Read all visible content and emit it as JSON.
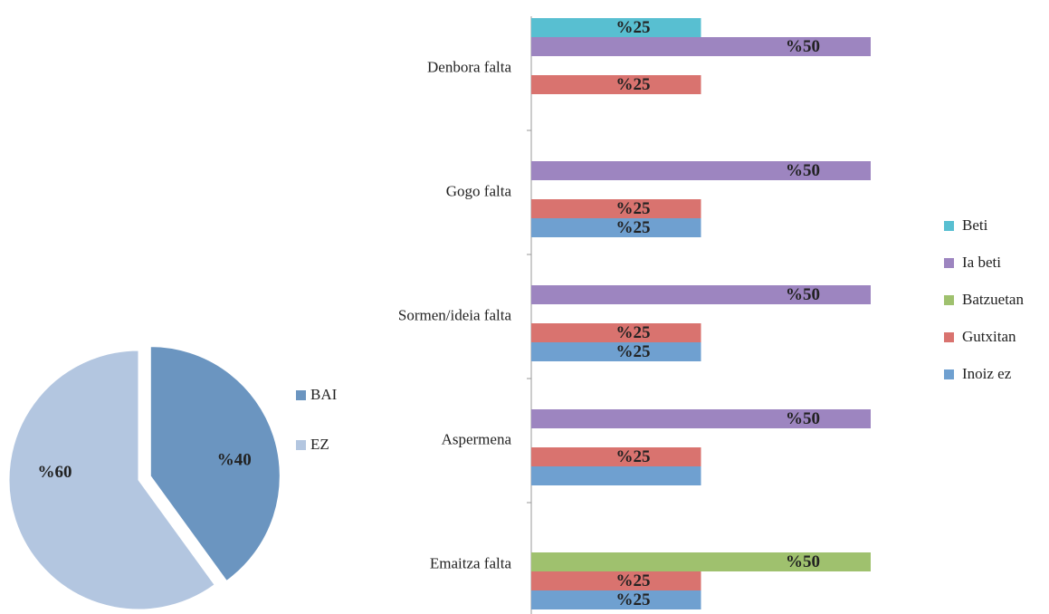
{
  "chart_data": [
    {
      "type": "pie",
      "categories": [
        "BAI",
        "EZ"
      ],
      "values": [
        40,
        60
      ],
      "value_labels": [
        "%40",
        "%60"
      ],
      "colors": [
        "#6b95c0",
        "#b3c6e0"
      ],
      "legend": "right"
    },
    {
      "type": "bar",
      "orientation": "horizontal",
      "categories": [
        "Denbora falta",
        "Gogo falta",
        "Sormen/ideia falta",
        "Aspermena",
        "Emaitza falta"
      ],
      "series": [
        {
          "name": "Beti",
          "color": "#58bfd1",
          "values": [
            25,
            null,
            null,
            null,
            null
          ],
          "value_labels": [
            "%25",
            null,
            null,
            null,
            null
          ]
        },
        {
          "name": "Ia beti",
          "color": "#9d85c0",
          "values": [
            50,
            50,
            50,
            50,
            null
          ],
          "value_labels": [
            "%50",
            "%50",
            "%50",
            "%50",
            null
          ]
        },
        {
          "name": "Batzuetan",
          "color": "#9fc16e",
          "values": [
            null,
            null,
            null,
            null,
            50
          ],
          "value_labels": [
            null,
            null,
            null,
            null,
            "%50"
          ]
        },
        {
          "name": "Gutxitan",
          "color": "#d9736f",
          "values": [
            25,
            25,
            25,
            25,
            25
          ],
          "value_labels": [
            "%25",
            "%25",
            "%25",
            "%25",
            "%25"
          ]
        },
        {
          "name": "Inoiz ez",
          "color": "#6fa0d0",
          "values": [
            null,
            25,
            25,
            25,
            25
          ],
          "value_labels": [
            null,
            "%25",
            "%25",
            null,
            "%25"
          ]
        }
      ],
      "legend": "right"
    }
  ]
}
